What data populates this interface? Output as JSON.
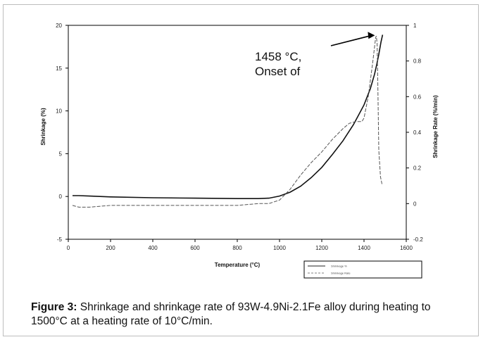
{
  "chart_data": {
    "type": "line",
    "xlabel": "Temperature (°C)",
    "ylabel": "Shrinkage (%)",
    "y2label": "Shrinkage Rate (%/min)",
    "xlim": [
      0,
      1600
    ],
    "ylim": [
      -5,
      20
    ],
    "y2lim": [
      -0.2,
      1
    ],
    "x_ticks": [
      0,
      200,
      400,
      600,
      800,
      1000,
      1200,
      1400,
      1600
    ],
    "y_ticks": [
      -5,
      0,
      5,
      10,
      15,
      20
    ],
    "y2_ticks": [
      "-0.2",
      "0",
      "0.2",
      "0.4",
      "0.6",
      "0.8",
      "1"
    ],
    "series": [
      {
        "name": "Shrinkage %",
        "axis": "left",
        "style": "solid",
        "x": [
          20,
          50,
          100,
          200,
          400,
          600,
          800,
          900,
          950,
          1000,
          1050,
          1100,
          1150,
          1200,
          1250,
          1300,
          1350,
          1400,
          1430,
          1450,
          1460,
          1470,
          1480,
          1488
        ],
        "y": [
          0.1,
          0.1,
          0.05,
          -0.05,
          -0.15,
          -0.2,
          -0.25,
          -0.25,
          -0.2,
          0.05,
          0.5,
          1.2,
          2.2,
          3.4,
          4.9,
          6.5,
          8.4,
          10.7,
          12.6,
          14.3,
          15.4,
          16.6,
          18.0,
          18.9
        ]
      },
      {
        "name": "Shrinkage Rate",
        "axis": "right",
        "style": "dashed",
        "x": [
          20,
          50,
          100,
          200,
          400,
          600,
          800,
          900,
          950,
          1000,
          1050,
          1100,
          1150,
          1200,
          1250,
          1300,
          1330,
          1360,
          1390,
          1400,
          1420,
          1440,
          1450,
          1455,
          1458,
          1462,
          1465,
          1470,
          1478,
          1485
        ],
        "y": [
          -0.01,
          -0.02,
          -0.02,
          -0.01,
          -0.01,
          -0.01,
          -0.01,
          0,
          0,
          0.02,
          0.08,
          0.16,
          0.23,
          0.29,
          0.36,
          0.42,
          0.45,
          0.46,
          0.46,
          0.48,
          0.6,
          0.78,
          0.88,
          0.93,
          0.94,
          0.9,
          0.7,
          0.3,
          0.15,
          0.11
        ]
      }
    ],
    "annotations": [
      {
        "line1": "1458 °C,",
        "line2": "Onset of",
        "x": 1458,
        "y2": 0.94
      }
    ],
    "legend": {
      "position": "bottom-right",
      "entries": [
        "Shrinkage %",
        "Shrinkage Rate"
      ]
    }
  },
  "caption": {
    "label": "Figure 3:",
    "text": " Shrinkage and shrinkage rate of 93W-4.9Ni-2.1Fe alloy during heating to 1500°C at a heating rate of 10°C/min."
  }
}
